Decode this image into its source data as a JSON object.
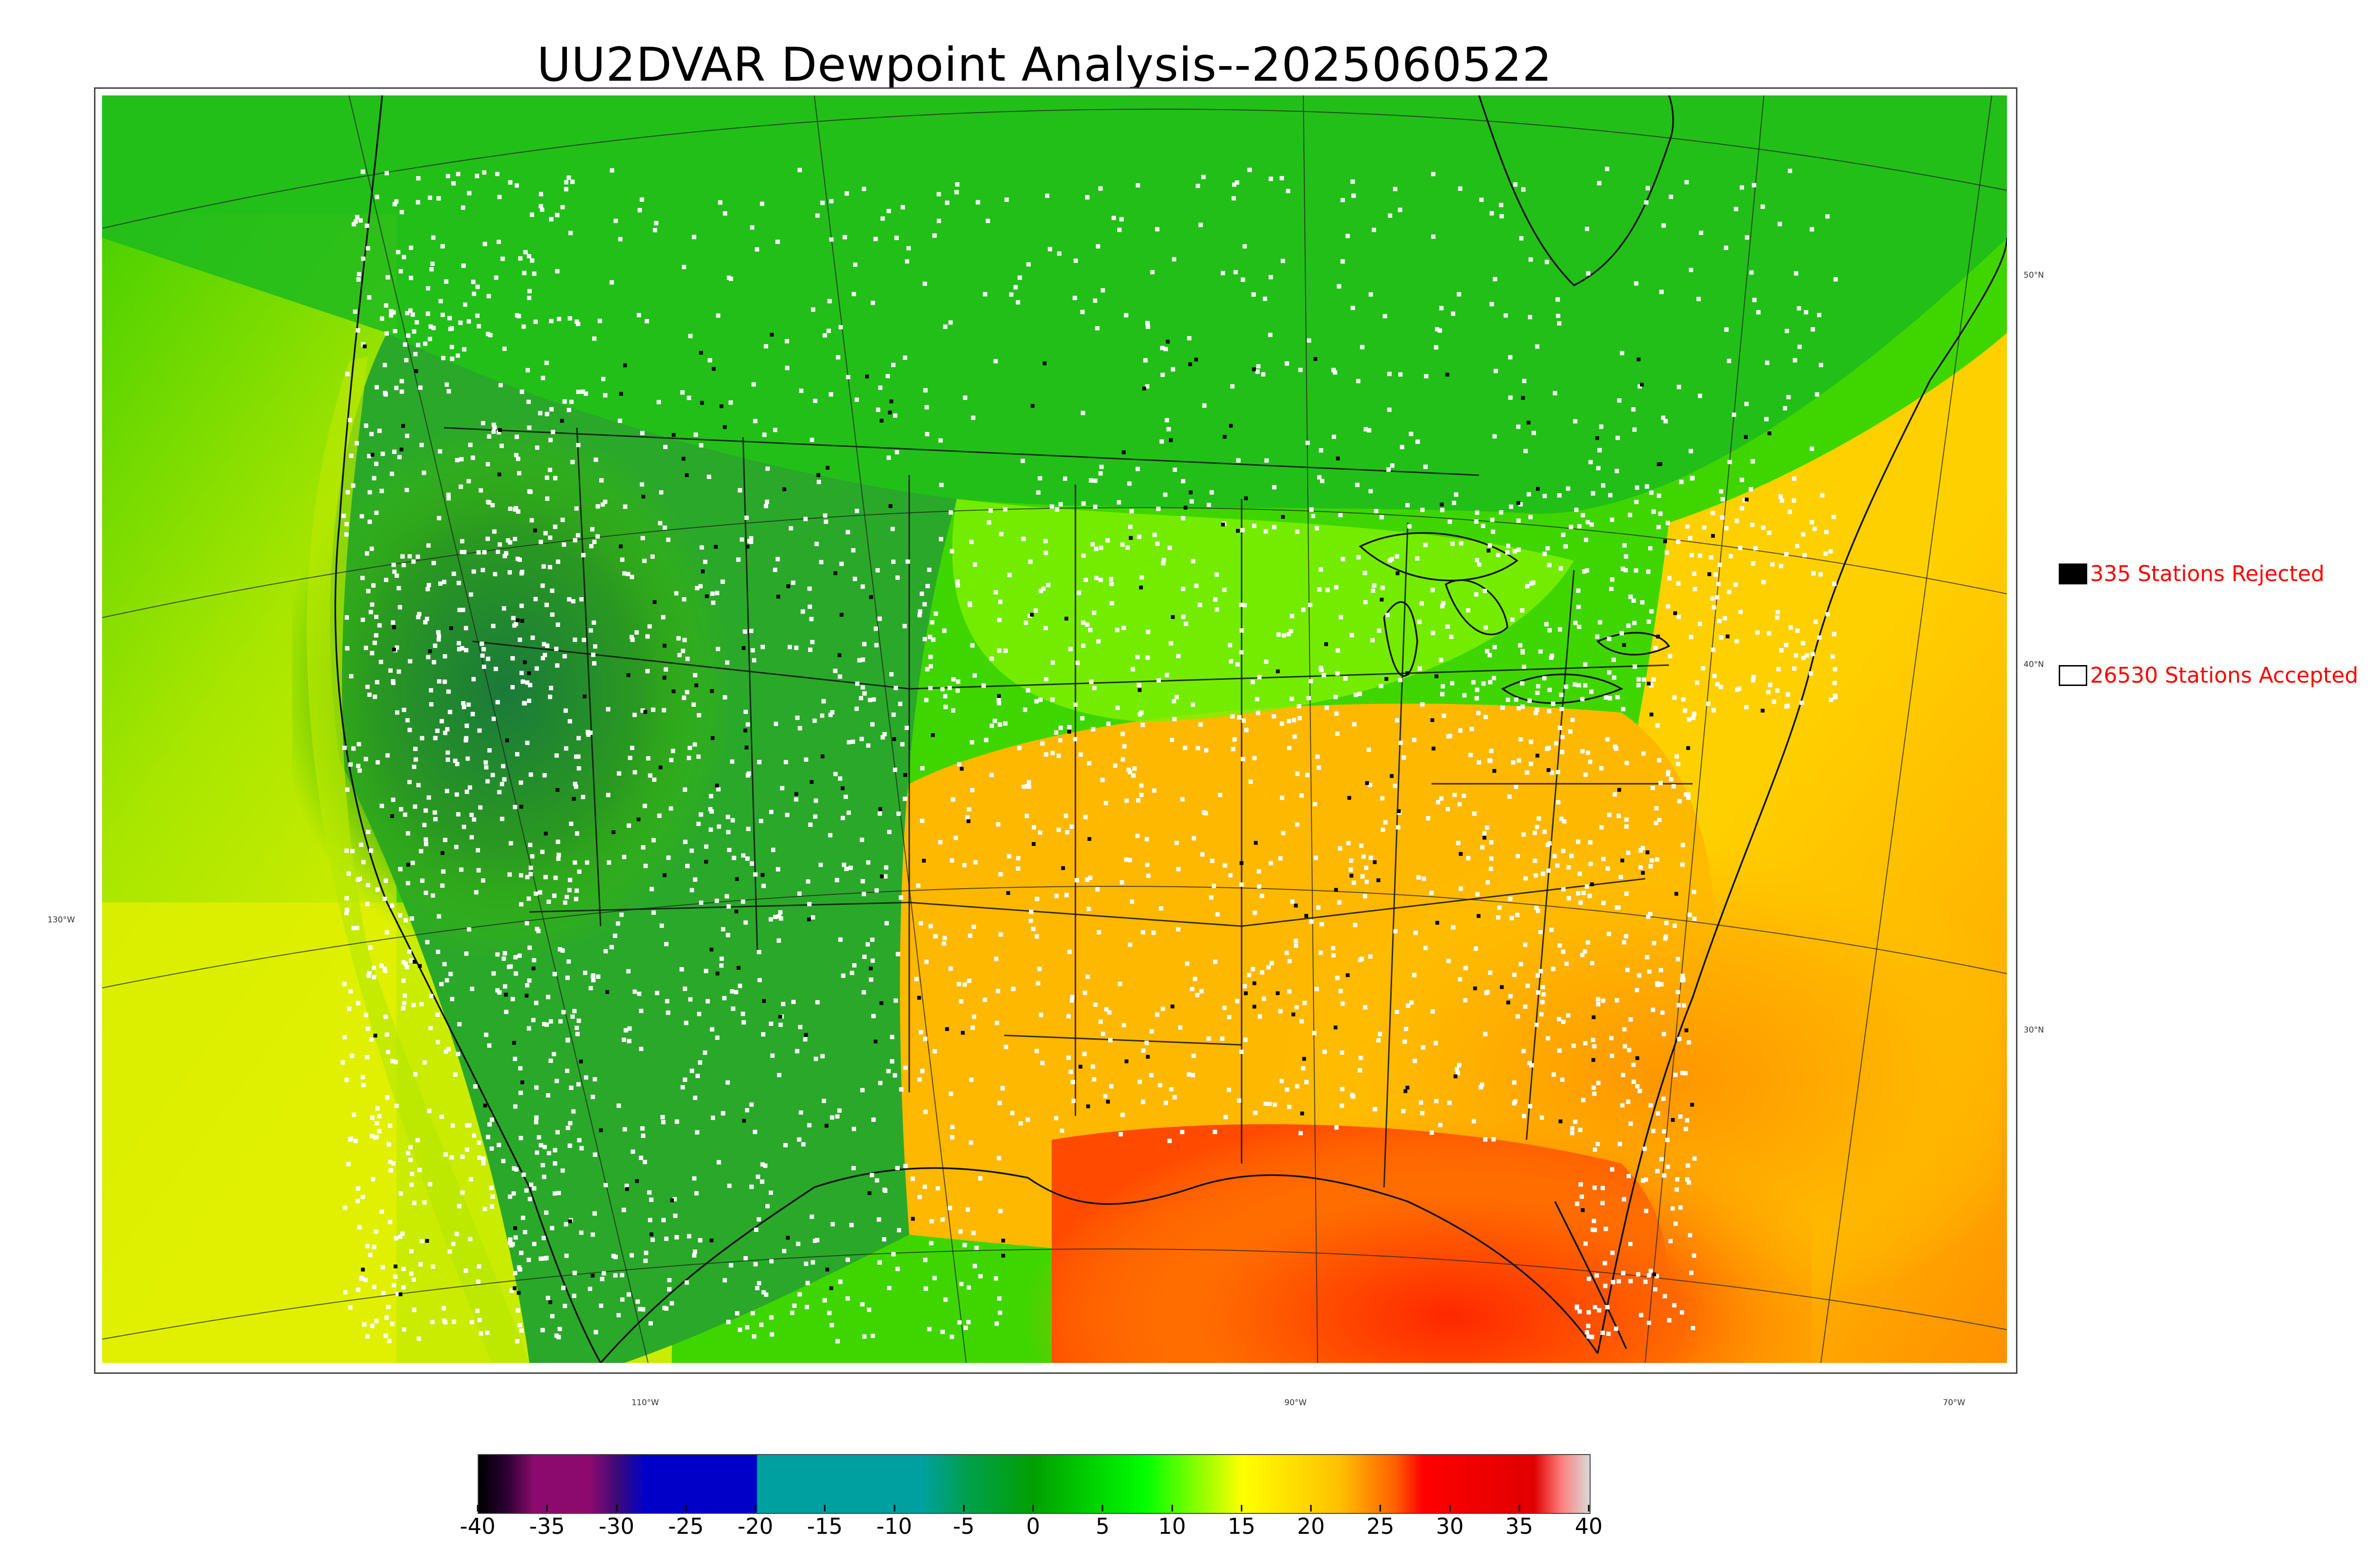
{
  "title": "UU2DVAR Dewpoint Analysis--2025060522",
  "legend": {
    "rejected": {
      "label": "335 Stations Rejected",
      "box_color": "#000000"
    },
    "accepted": {
      "label": "26530 Stations Accepted",
      "box_color": "#ffffff"
    }
  },
  "lat_labels": [
    "50°N",
    "40°N",
    "30°N"
  ],
  "lon_labels": [
    "130°W",
    "110°W",
    "90°W",
    "70°W"
  ],
  "colorbar": {
    "ticks": [
      "-40",
      "-35",
      "-30",
      "-25",
      "-20",
      "-15",
      "-10",
      "-5",
      "0",
      "5",
      "10",
      "15",
      "20",
      "25",
      "30",
      "35",
      "40"
    ],
    "min": -40,
    "max": 40,
    "stops": [
      {
        "value": -40,
        "color": "#000000"
      },
      {
        "value": -38,
        "color": "#2a0033"
      },
      {
        "value": -36,
        "color": "#8c0a6e"
      },
      {
        "value": -32,
        "color": "#8c0a6e"
      },
      {
        "value": -30,
        "color": "#3c0a7a"
      },
      {
        "value": -28,
        "color": "#0000c8"
      },
      {
        "value": -20,
        "color": "#0000c8"
      },
      {
        "value": -19.9,
        "color": "#00a0a0"
      },
      {
        "value": -8,
        "color": "#00a0a0"
      },
      {
        "value": -5,
        "color": "#00a050"
      },
      {
        "value": 0,
        "color": "#00a000"
      },
      {
        "value": 8,
        "color": "#00ff00"
      },
      {
        "value": 15,
        "color": "#ffff00"
      },
      {
        "value": 22,
        "color": "#ffc000"
      },
      {
        "value": 26,
        "color": "#ff6000"
      },
      {
        "value": 28,
        "color": "#ff0000"
      },
      {
        "value": 36,
        "color": "#e00000"
      },
      {
        "value": 38,
        "color": "#ff8080"
      },
      {
        "value": 40,
        "color": "#d8d8d8"
      }
    ]
  },
  "colors": {
    "accepted_station": "#ffffff",
    "rejected_station": "#000000"
  }
}
